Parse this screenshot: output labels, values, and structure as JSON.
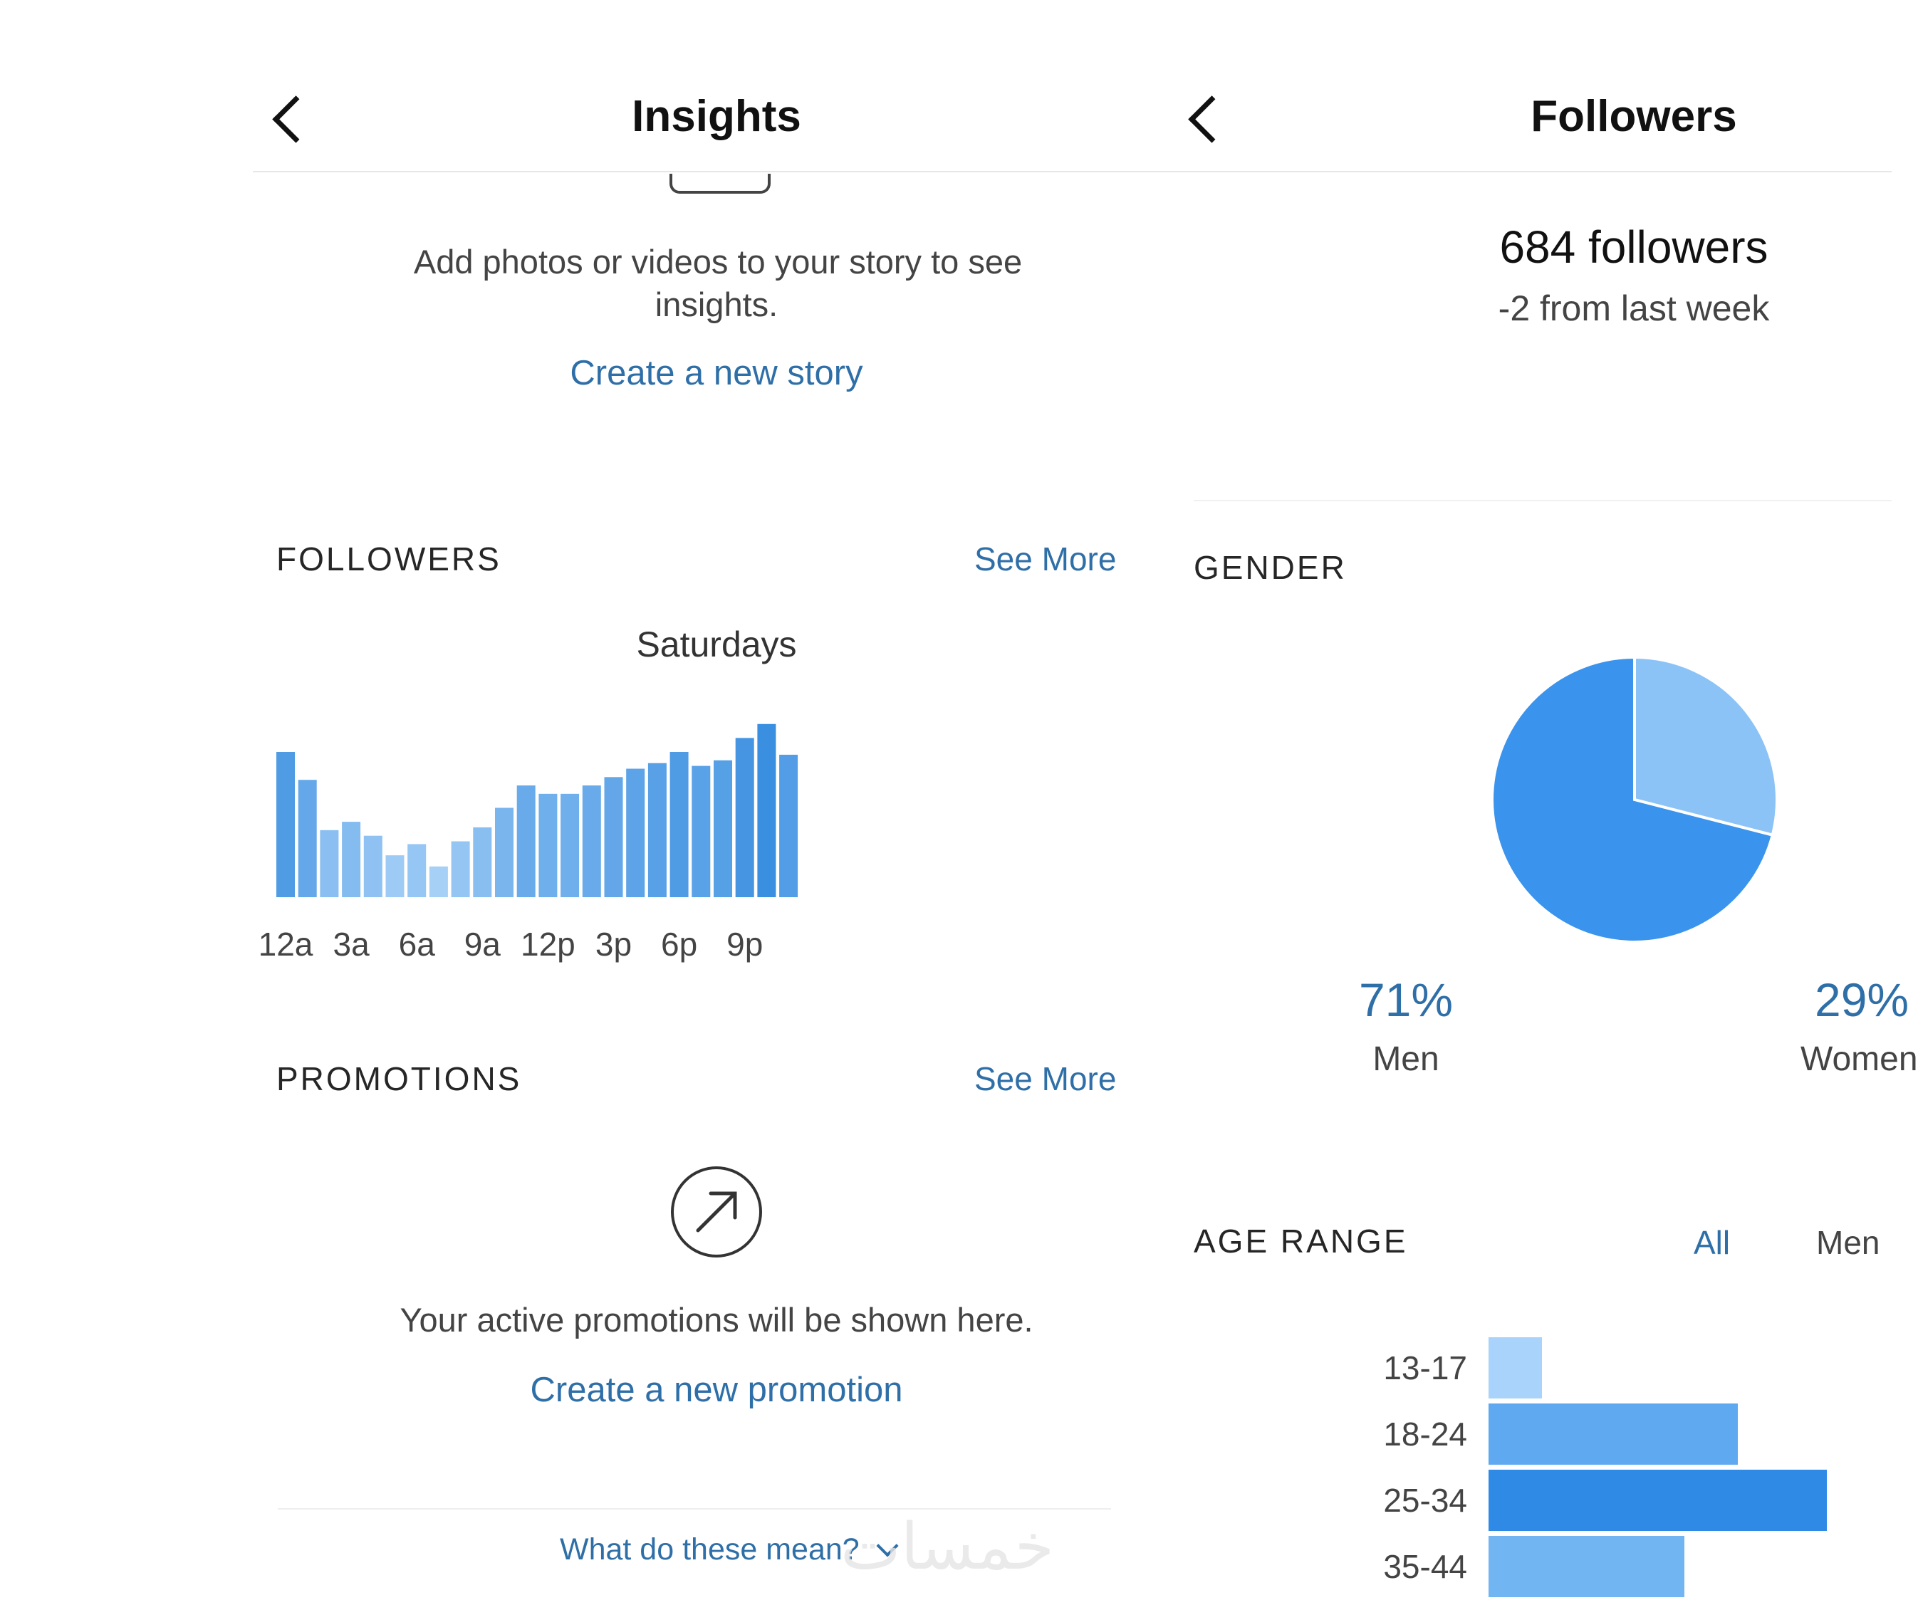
{
  "insights": {
    "title": "Insights",
    "stories": {
      "message_line1": "Add photos or videos to your story to see",
      "message_line2": "insights.",
      "create_link": "Create a new story"
    },
    "followers": {
      "heading": "FOLLOWERS",
      "see_more": "See More",
      "chart_title": "Saturdays"
    },
    "promotions": {
      "heading": "PROMOTIONS",
      "see_more": "See More",
      "message": "Your active promotions will be shown here.",
      "create_link": "Create a new promotion"
    },
    "footer_link": "What do these mean?"
  },
  "followers_page": {
    "title": "Followers",
    "count_text": "684 followers",
    "change_text": "-2 from last week",
    "gender": {
      "heading": "GENDER",
      "men_pct": "71%",
      "men_label": "Men",
      "women_pct": "29%",
      "women_label": "Women"
    },
    "age_range": {
      "heading": "AGE RANGE",
      "tabs": [
        "All",
        "Men"
      ]
    }
  },
  "colors": {
    "link": "#2f6fa8",
    "bar_dark": "#3a8fe0",
    "bar_light": "#a7d0f7",
    "pie_men": "#3a93ec",
    "pie_women": "#8cc3f7"
  },
  "chart_data": [
    {
      "type": "bar",
      "title": "Saturdays",
      "categories": [
        "12a",
        "1a",
        "2a",
        "3a",
        "4a",
        "5a",
        "6a",
        "7a",
        "8a",
        "9a",
        "10a",
        "11a",
        "12p",
        "1p",
        "2p",
        "3p",
        "4p",
        "5p",
        "6p",
        "7p",
        "8p",
        "9p",
        "10p",
        "11p"
      ],
      "tick_labels": [
        "12a",
        "3a",
        "6a",
        "9a",
        "12p",
        "3p",
        "6p",
        "9p"
      ],
      "values": [
        52,
        42,
        24,
        27,
        22,
        15,
        19,
        11,
        20,
        25,
        32,
        40,
        37,
        37,
        40,
        43,
        46,
        48,
        52,
        47,
        49,
        57,
        62,
        51
      ],
      "ylim": [
        0,
        65
      ],
      "grid": false,
      "legend": "none"
    },
    {
      "type": "pie",
      "labels": [
        "Men",
        "Women"
      ],
      "values": [
        71,
        29
      ],
      "legend": "none"
    },
    {
      "type": "bar",
      "orientation": "horizontal",
      "categories": [
        "13-17",
        "18-24",
        "25-34",
        "35-44"
      ],
      "values": [
        3,
        14,
        19,
        11
      ],
      "grid": false,
      "legend": "none"
    }
  ]
}
